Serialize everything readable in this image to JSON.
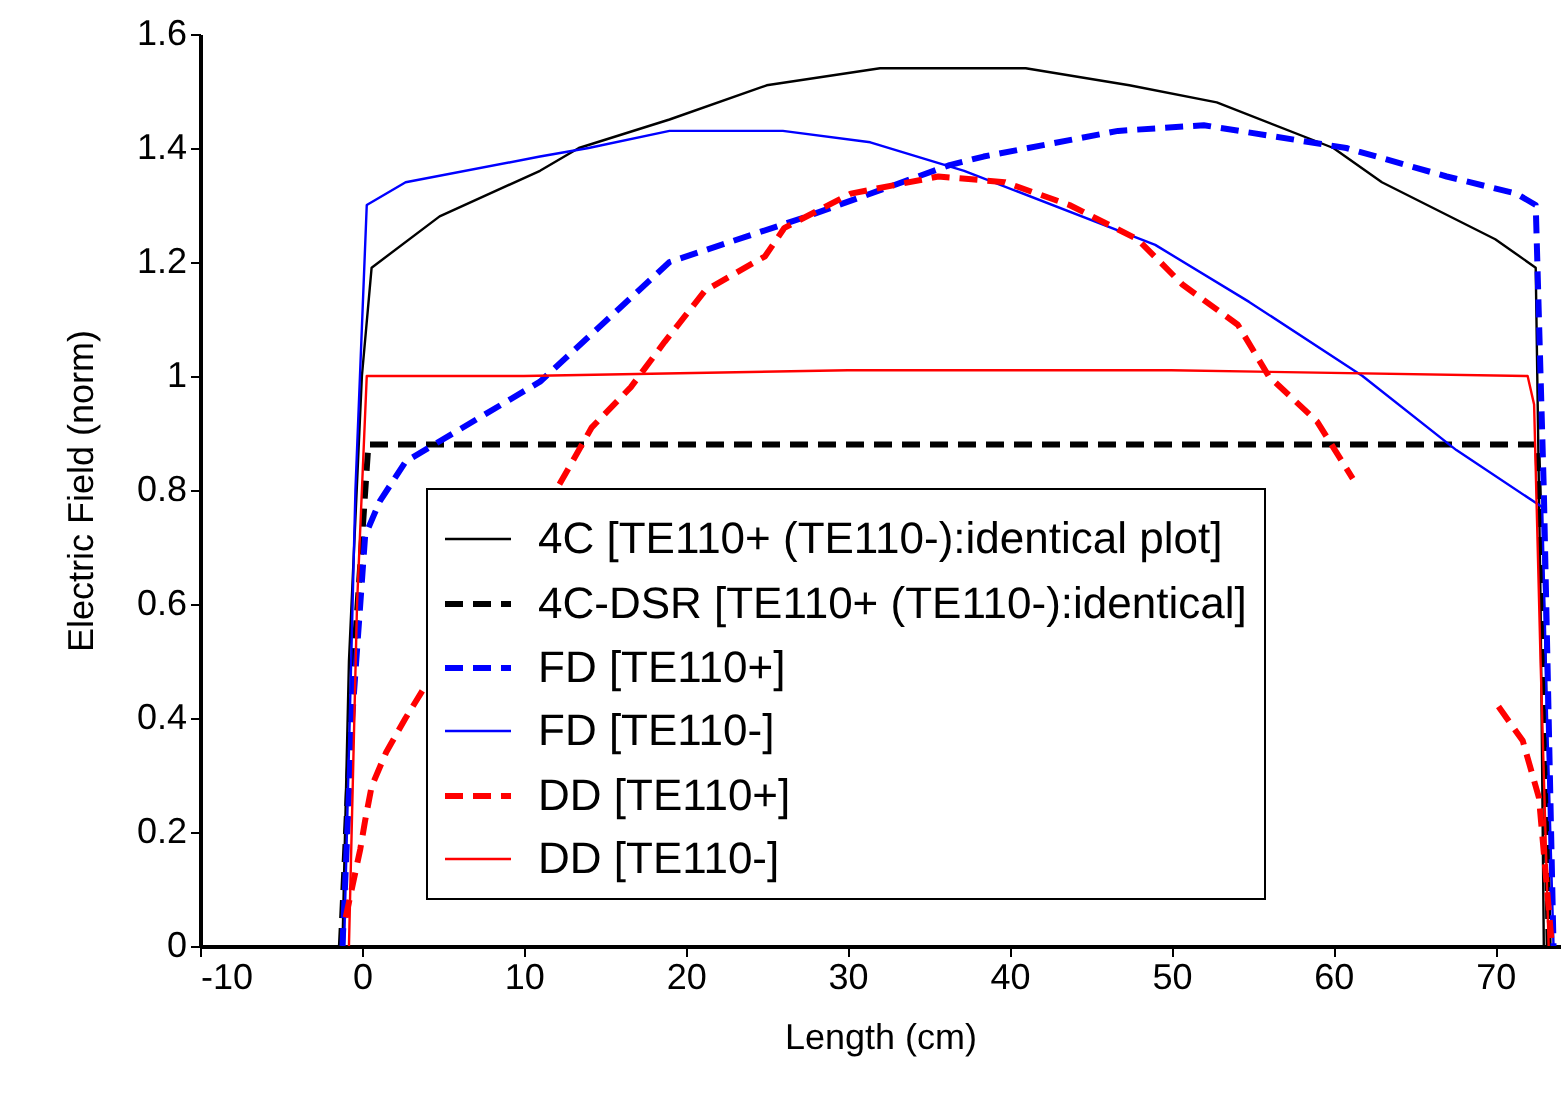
{
  "chart_data": {
    "type": "line",
    "xlabel": "Length (cm)",
    "ylabel": "Electric Field (norm)",
    "xlim": [
      -10,
      74
    ],
    "xticks": [
      -10,
      0,
      10,
      20,
      30,
      40,
      50,
      60,
      70
    ],
    "ylim": [
      0,
      1.6
    ],
    "yticks": [
      0,
      0.2,
      0.4,
      0.6,
      0.8,
      1,
      1.2,
      1.4,
      1.6
    ],
    "legend": "bottom",
    "series": [
      {
        "name": "4C [TE110+ (TE110-):identical plot]",
        "color": "#000000",
        "line_style": "solid",
        "x": [
          -1.2,
          -0.8,
          0,
          0.6,
          4.8,
          11,
          13.4,
          19,
          25,
          32,
          41,
          47.4,
          52.8,
          60,
          63,
          70,
          72.5,
          72.8,
          73
        ],
        "values": [
          0,
          0.5,
          1.0,
          1.19,
          1.28,
          1.36,
          1.4,
          1.45,
          1.51,
          1.54,
          1.54,
          1.51,
          1.48,
          1.4,
          1.34,
          1.24,
          1.19,
          0.6,
          0
        ]
      },
      {
        "name": "4C-DSR [TE110+ (TE110-):identical]",
        "color": "#000000",
        "line_style": "dashed",
        "x": [
          -1.3,
          -0.5,
          0.4,
          72.6,
          73,
          73.3
        ],
        "values": [
          0,
          0.5,
          0.88,
          0.88,
          0.5,
          0
        ]
      },
      {
        "name": "FD [TE110+]",
        "color": "#0000ff",
        "line_style": "dashed",
        "x": [
          -1.2,
          -0.6,
          0.2,
          1.1,
          2.7,
          11,
          19,
          27.5,
          36.3,
          38.4,
          46.7,
          52,
          60.8,
          67,
          71.3,
          72.5,
          73,
          73.6
        ],
        "values": [
          0,
          0.4,
          0.72,
          0.78,
          0.85,
          0.99,
          1.2,
          1.28,
          1.37,
          1.385,
          1.43,
          1.44,
          1.4,
          1.35,
          1.32,
          1.3,
          0.8,
          0
        ]
      },
      {
        "name": "FD [TE110-]",
        "color": "#0000ff",
        "line_style": "solid",
        "x": [
          -1.1,
          -0.4,
          0.3,
          2.7,
          11,
          14,
          19,
          26,
          31.4,
          37.2,
          49,
          54.8,
          61.8,
          67.6,
          72.9,
          73.2,
          73.6
        ],
        "values": [
          0,
          0.8,
          1.3,
          1.34,
          1.385,
          1.4,
          1.43,
          1.43,
          1.41,
          1.36,
          1.23,
          1.13,
          1.0,
          0.87,
          0.77,
          0.4,
          0
        ]
      },
      {
        "name": "DD [TE110+]",
        "color": "#ff0000",
        "line_style": "dashed",
        "x": [
          -1,
          -0.1,
          0.2,
          0.6,
          1.5,
          2.7,
          4.0,
          8,
          12.2,
          14.2,
          16.6,
          18.7,
          21.2,
          24.9,
          26.1,
          30.2,
          35.6,
          39.7,
          43.7,
          47.9,
          50.7,
          54.1,
          56,
          59,
          61.2,
          65,
          70.2,
          71.7,
          72.7,
          73.2,
          73.5
        ],
        "values": [
          0.05,
          0.17,
          0.22,
          0.28,
          0.34,
          0.4,
          0.46,
          null,
          0.81,
          0.91,
          0.98,
          1.06,
          1.15,
          1.21,
          1.26,
          1.32,
          1.35,
          1.34,
          1.3,
          1.24,
          1.16,
          1.09,
          1.0,
          0.92,
          0.82,
          null,
          0.42,
          0.36,
          0.26,
          0.1,
          0
        ]
      },
      {
        "name": "DD [TE110-]",
        "color": "#ff0000",
        "line_style": "solid",
        "x": [
          -0.8,
          -0.3,
          0.3,
          10,
          30,
          50,
          72,
          72.4,
          72.8,
          73.3
        ],
        "values": [
          0,
          0.6,
          1.0,
          1.0,
          1.01,
          1.01,
          1.0,
          0.95,
          0.5,
          0
        ]
      }
    ]
  }
}
